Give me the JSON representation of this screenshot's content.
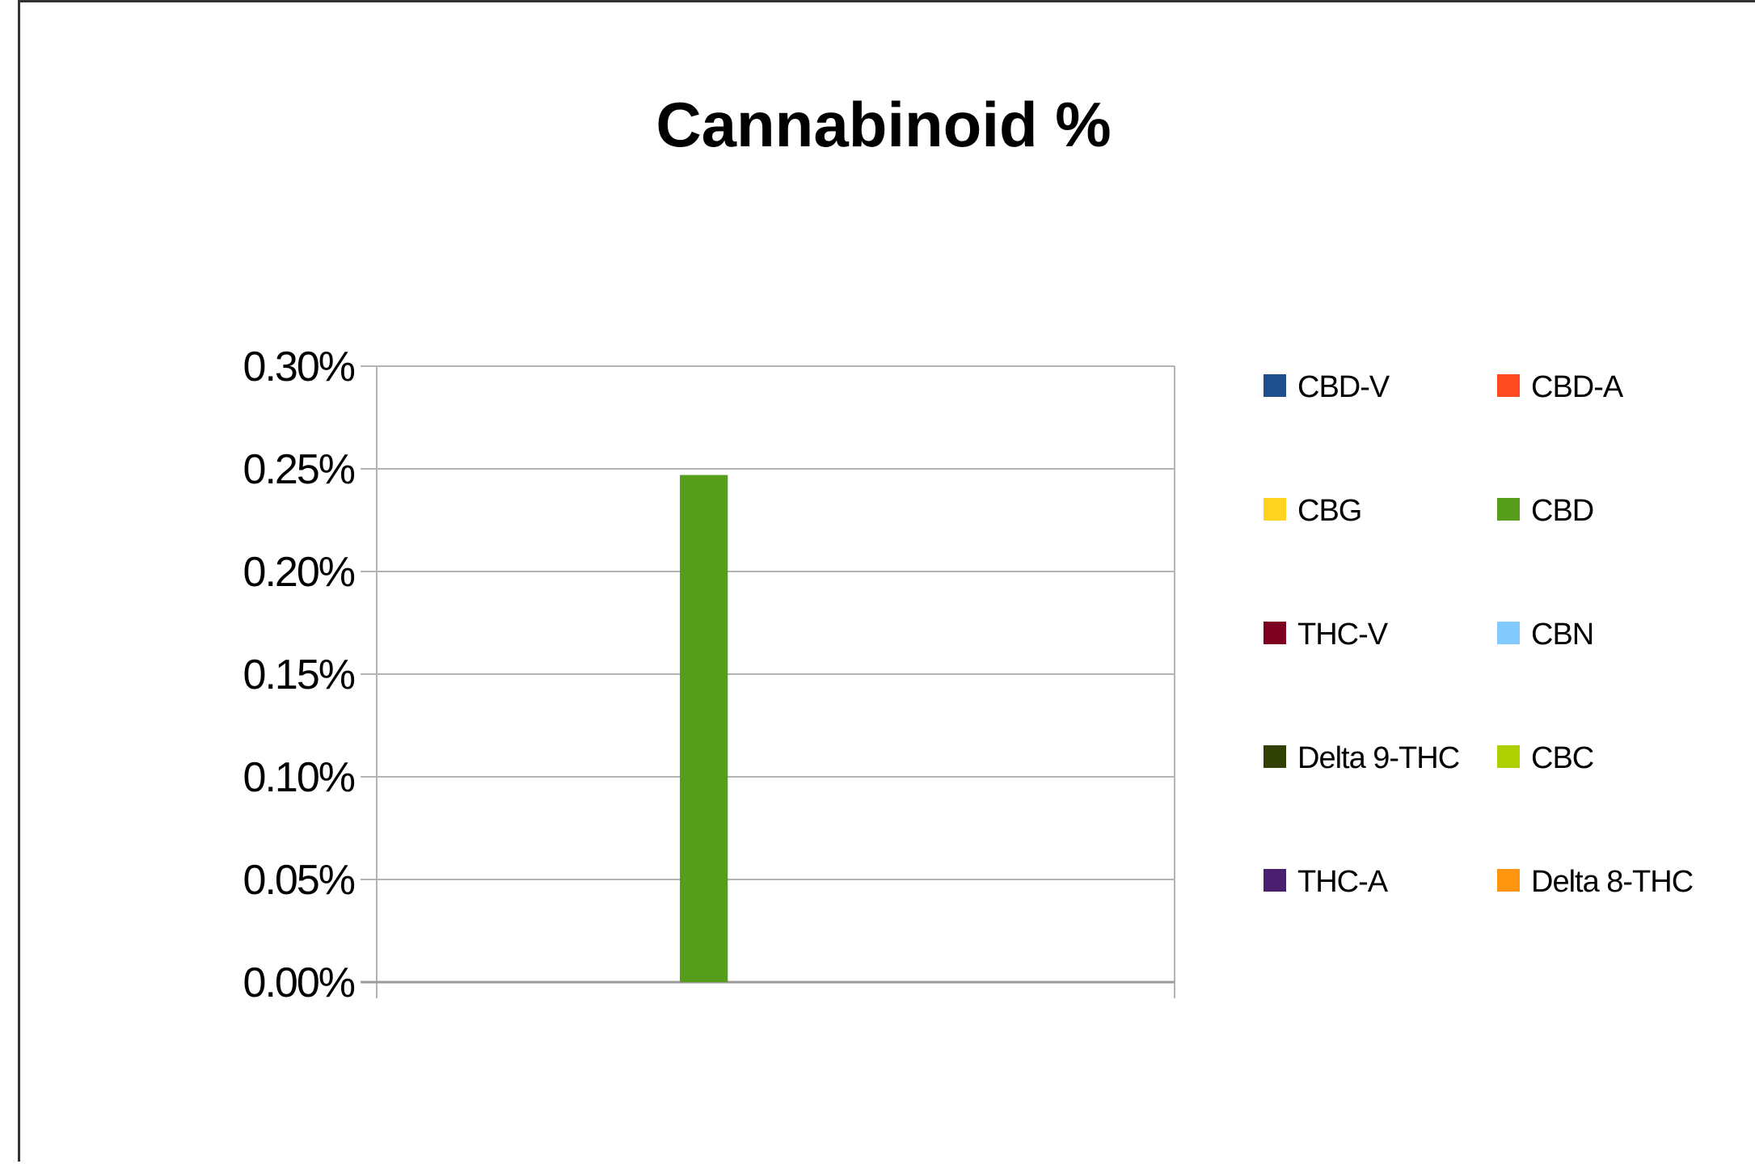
{
  "chart_data": {
    "type": "bar",
    "title": "Cannabinoid %",
    "xlabel": "",
    "ylabel": "",
    "ylim": [
      0,
      0.3
    ],
    "y_ticks": [
      "0.00%",
      "0.05%",
      "0.10%",
      "0.15%",
      "0.20%",
      "0.25%",
      "0.30%"
    ],
    "y_tick_values": [
      0,
      0.05,
      0.1,
      0.15,
      0.2,
      0.25,
      0.3
    ],
    "grid": true,
    "legend_position": "right",
    "categories": [
      ""
    ],
    "series": [
      {
        "name": "CBD-V",
        "color": "#1f4e8c",
        "values": [
          0
        ]
      },
      {
        "name": "CBD-A",
        "color": "#ff4b1f",
        "values": [
          0
        ]
      },
      {
        "name": "CBG",
        "color": "#ffd320",
        "values": [
          0
        ]
      },
      {
        "name": "CBD",
        "color": "#579d1c",
        "values": [
          0.247
        ]
      },
      {
        "name": "THC-V",
        "color": "#7e0021",
        "values": [
          0
        ]
      },
      {
        "name": "CBN",
        "color": "#83caff",
        "values": [
          0
        ]
      },
      {
        "name": "Delta 9-THC",
        "color": "#314004",
        "values": [
          0
        ]
      },
      {
        "name": "CBC",
        "color": "#aecf00",
        "values": [
          0
        ]
      },
      {
        "name": "THC-A",
        "color": "#4b1f6f",
        "values": [
          0
        ]
      },
      {
        "name": "Delta 8-THC",
        "color": "#ff950e",
        "values": [
          0
        ]
      }
    ]
  }
}
